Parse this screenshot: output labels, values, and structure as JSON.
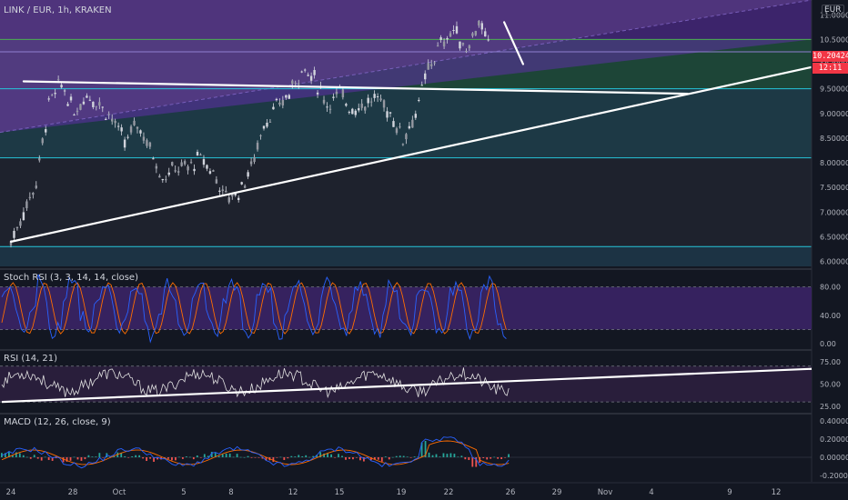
{
  "header": {
    "symbol_line": "LINK / EUR, 1h, KRAKEN",
    "currency": "EUR",
    "last_price": "10.20424",
    "countdown": "12:11"
  },
  "panels": {
    "stoch_label": "Stoch RSI (3, 3, 14, 14, close)",
    "rsi_label": "RSI (14, 21)",
    "macd_label": "MACD (12, 26, close, 9)"
  },
  "chart_data": [
    {
      "type": "candlestick",
      "title": "LINK / EUR, 1h, KRAKEN",
      "x_tick_labels": [
        "24",
        "28",
        "Oct",
        "5",
        "8",
        "12",
        "15",
        "19",
        "22",
        "26",
        "29",
        "Nov",
        "4",
        "9",
        "12"
      ],
      "y_tick_labels": [
        "11.00000",
        "10.50000",
        "10.00000",
        "9.50000",
        "9.00000",
        "8.50000",
        "8.00000",
        "7.50000",
        "7.00000",
        "6.50000",
        "6.00000"
      ],
      "ylim": [
        5.9,
        11.3
      ],
      "horizontal_levels": [
        10.5,
        10.25,
        9.5,
        8.1,
        6.3
      ],
      "price_path": [
        [
          0,
          6.4
        ],
        [
          2,
          7.6
        ],
        [
          3,
          9.2
        ],
        [
          4,
          9.6
        ],
        [
          5,
          9.0
        ],
        [
          6,
          9.4
        ],
        [
          7,
          9.2
        ],
        [
          8,
          8.9
        ],
        [
          9,
          8.4
        ],
        [
          10,
          8.8
        ],
        [
          11,
          8.3
        ],
        [
          12,
          7.7
        ],
        [
          13,
          7.9
        ],
        [
          14,
          7.9
        ],
        [
          15,
          8.1
        ],
        [
          16,
          7.8
        ],
        [
          17,
          7.3
        ],
        [
          18,
          7.4
        ],
        [
          19,
          7.9
        ],
        [
          20,
          8.8
        ],
        [
          21,
          9.1
        ],
        [
          22,
          9.4
        ],
        [
          23,
          9.9
        ],
        [
          24,
          9.7
        ],
        [
          25,
          9.2
        ],
        [
          26,
          9.4
        ],
        [
          27,
          9.1
        ],
        [
          28,
          9.2
        ],
        [
          29,
          9.3
        ],
        [
          30,
          9.0
        ],
        [
          31,
          8.5
        ],
        [
          32,
          9.0
        ],
        [
          33,
          9.9
        ],
        [
          34,
          10.4
        ],
        [
          35,
          10.7
        ],
        [
          36,
          10.3
        ],
        [
          37,
          10.85
        ],
        [
          38,
          10.2
        ]
      ],
      "trendlines": [
        {
          "from": [
            0,
            6.4
          ],
          "to": [
            63.5,
            9.95
          ]
        },
        {
          "from": [
            1,
            9.65
          ],
          "to": [
            53.5,
            9.4
          ]
        },
        {
          "from": [
            39,
            10.85
          ],
          "to": [
            40.5,
            10.0
          ]
        }
      ]
    },
    {
      "type": "line",
      "title": "Stoch RSI (3, 3, 14, 14, close)",
      "y_tick_labels": [
        "80.00",
        "40.00",
        "0.00"
      ],
      "ylim": [
        -5,
        100
      ],
      "bands": [
        80,
        20
      ]
    },
    {
      "type": "line",
      "title": "RSI (14, 21)",
      "y_tick_labels": [
        "75.00",
        "50.00",
        "25.00"
      ],
      "ylim": [
        20,
        85
      ],
      "bands": [
        70,
        30
      ]
    },
    {
      "type": "bar",
      "title": "MACD (12, 26, close, 9)",
      "y_tick_labels": [
        "0.40000",
        "0.20000",
        "0.00000",
        "-0.20000"
      ],
      "ylim": [
        -0.25,
        0.45
      ]
    }
  ],
  "colors": {
    "background": "#131722",
    "candle_up": "#d1d4dc",
    "candle_down": "#d1d4dc",
    "purple_zone": "#5b3a8c",
    "green_zone": "#1f4a3a",
    "teal_zone": "#1d3b48",
    "level_green": "#4caf50",
    "level_teal": "#26c6da",
    "last_price": "#f23645",
    "stoch_k": "#2962ff",
    "stoch_d": "#ff6d00",
    "macd_line": "#2962ff",
    "signal_line": "#ff6d00",
    "hist_up": "#26a69a",
    "hist_down": "#ef5350"
  }
}
